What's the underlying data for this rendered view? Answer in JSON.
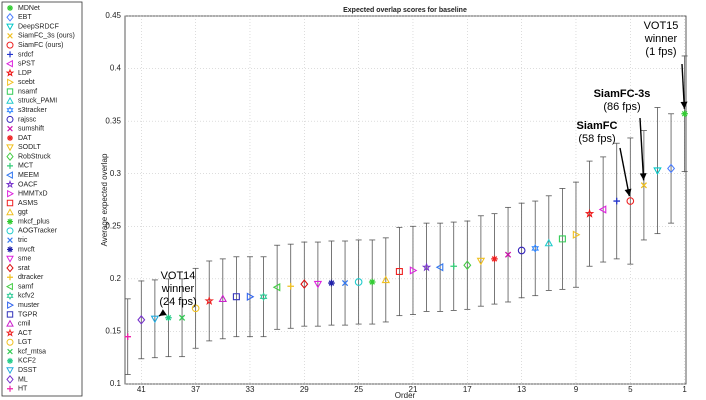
{
  "chart_data": {
    "type": "scatter",
    "title": "Expected overlap scores for baseline",
    "xlabel": "Order",
    "ylabel": "Average expected overlap",
    "xlim": [
      42.2,
      0.9
    ],
    "ylim": [
      0.1,
      0.45
    ],
    "xticks": [
      41,
      37,
      33,
      29,
      25,
      21,
      17,
      13,
      9,
      5,
      1
    ],
    "yticks": [
      0.1,
      0.15,
      0.2,
      0.25,
      0.3,
      0.35,
      0.4,
      0.45
    ],
    "grid": true,
    "legend": "outside-left",
    "series": [
      {
        "name": "MDNet",
        "color": "#33cc33",
        "marker": "asterisk",
        "x": [
          1
        ],
        "values": [
          0.357
        ],
        "yerr": [
          0.055
        ]
      },
      {
        "name": "EBT",
        "color": "#4d7fff",
        "marker": "diamond",
        "x": [
          2
        ],
        "values": [
          0.305
        ],
        "yerr": [
          0.052
        ]
      },
      {
        "name": "DeepSRDCF",
        "color": "#00c8c8",
        "marker": "tri-down",
        "x": [
          3
        ],
        "values": [
          0.303
        ],
        "yerr": [
          0.06
        ]
      },
      {
        "name": "SiamFC_3s (ours)",
        "color": "#f0c020",
        "marker": "x",
        "x": [
          4
        ],
        "values": [
          0.289
        ],
        "yerr": [
          0.052
        ]
      },
      {
        "name": "SiamFC (ours)",
        "color": "#ee2222",
        "marker": "circle",
        "x": [
          5
        ],
        "values": [
          0.274
        ],
        "yerr": [
          0.06
        ]
      },
      {
        "name": "srdcf",
        "color": "#2233cc",
        "marker": "plus",
        "x": [
          6
        ],
        "values": [
          0.274
        ],
        "yerr": [
          0.055
        ]
      },
      {
        "name": "sPST",
        "color": "#dd22dd",
        "marker": "tri-left",
        "x": [
          7
        ],
        "values": [
          0.266
        ],
        "yerr": [
          0.05
        ]
      },
      {
        "name": "LDP",
        "color": "#ee1111",
        "marker": "pentagram",
        "x": [
          8
        ],
        "values": [
          0.262
        ],
        "yerr": [
          0.05
        ]
      },
      {
        "name": "scebt",
        "color": "#f0c020",
        "marker": "tri-right",
        "x": [
          9
        ],
        "values": [
          0.242
        ],
        "yerr": [
          0.05
        ]
      },
      {
        "name": "nsamf",
        "color": "#33cc55",
        "marker": "square",
        "x": [
          10
        ],
        "values": [
          0.238
        ],
        "yerr": [
          0.048
        ]
      },
      {
        "name": "struck_PAMI",
        "color": "#22cccc",
        "marker": "tri-up",
        "x": [
          11
        ],
        "values": [
          0.234
        ],
        "yerr": [
          0.045
        ]
      },
      {
        "name": "s3tracker",
        "color": "#3388ff",
        "marker": "hexagram",
        "x": [
          12
        ],
        "values": [
          0.229
        ],
        "yerr": [
          0.045
        ]
      },
      {
        "name": "rajssc",
        "color": "#3322bb",
        "marker": "circle",
        "x": [
          13
        ],
        "values": [
          0.227
        ],
        "yerr": [
          0.045
        ]
      },
      {
        "name": "sumshift",
        "color": "#cc11aa",
        "marker": "x",
        "x": [
          14
        ],
        "values": [
          0.223
        ],
        "yerr": [
          0.045
        ]
      },
      {
        "name": "DAT",
        "color": "#ee2222",
        "marker": "asterisk",
        "x": [
          15
        ],
        "values": [
          0.219
        ],
        "yerr": [
          0.043
        ]
      },
      {
        "name": "SODLT",
        "color": "#f0c020",
        "marker": "tri-down",
        "x": [
          16
        ],
        "values": [
          0.217
        ],
        "yerr": [
          0.043
        ]
      },
      {
        "name": "RobStruck",
        "color": "#44cc44",
        "marker": "diamond",
        "x": [
          17
        ],
        "values": [
          0.213
        ],
        "yerr": [
          0.042
        ]
      },
      {
        "name": "MCT",
        "color": "#33cc77",
        "marker": "plus",
        "x": [
          18
        ],
        "values": [
          0.212
        ],
        "yerr": [
          0.042
        ]
      },
      {
        "name": "MEEM",
        "color": "#3377ee",
        "marker": "tri-left",
        "x": [
          19
        ],
        "values": [
          0.211
        ],
        "yerr": [
          0.042
        ]
      },
      {
        "name": "OACF",
        "color": "#7733cc",
        "marker": "pentagram",
        "x": [
          20
        ],
        "values": [
          0.211
        ],
        "yerr": [
          0.042
        ]
      },
      {
        "name": "HMMTxD",
        "color": "#dd22dd",
        "marker": "tri-right",
        "x": [
          21
        ],
        "values": [
          0.208
        ],
        "yerr": [
          0.042
        ]
      },
      {
        "name": "ASMS",
        "color": "#ee2222",
        "marker": "square",
        "x": [
          22
        ],
        "values": [
          0.207
        ],
        "yerr": [
          0.042
        ]
      },
      {
        "name": "ggt",
        "color": "#f0c020",
        "marker": "tri-up",
        "x": [
          23
        ],
        "values": [
          0.199
        ],
        "yerr": [
          0.04
        ]
      },
      {
        "name": "mkcf_plus",
        "color": "#33cc33",
        "marker": "asterisk",
        "x": [
          24
        ],
        "values": [
          0.197
        ],
        "yerr": [
          0.04
        ]
      },
      {
        "name": "AOGTracker",
        "color": "#22cccc",
        "marker": "circle",
        "x": [
          25
        ],
        "values": [
          0.197
        ],
        "yerr": [
          0.04
        ]
      },
      {
        "name": "tric",
        "color": "#3377ee",
        "marker": "x",
        "x": [
          26
        ],
        "values": [
          0.196
        ],
        "yerr": [
          0.04
        ]
      },
      {
        "name": "mvcft",
        "color": "#2222aa",
        "marker": "asterisk",
        "x": [
          27
        ],
        "values": [
          0.196
        ],
        "yerr": [
          0.04
        ]
      },
      {
        "name": "sme",
        "color": "#dd22dd",
        "marker": "tri-down",
        "x": [
          28
        ],
        "values": [
          0.195
        ],
        "yerr": [
          0.04
        ]
      },
      {
        "name": "srat",
        "color": "#dd1111",
        "marker": "diamond",
        "x": [
          29
        ],
        "values": [
          0.195
        ],
        "yerr": [
          0.04
        ]
      },
      {
        "name": "dtracker",
        "color": "#f0c020",
        "marker": "plus",
        "x": [
          30
        ],
        "values": [
          0.193
        ],
        "yerr": [
          0.04
        ]
      },
      {
        "name": "samf",
        "color": "#44cc44",
        "marker": "tri-left",
        "x": [
          31
        ],
        "values": [
          0.192
        ],
        "yerr": [
          0.04
        ]
      },
      {
        "name": "kcfv2",
        "color": "#33cc99",
        "marker": "hexagram",
        "x": [
          32
        ],
        "values": [
          0.183
        ],
        "yerr": [
          0.038
        ]
      },
      {
        "name": "muster",
        "color": "#3366ee",
        "marker": "tri-right",
        "x": [
          33
        ],
        "values": [
          0.183
        ],
        "yerr": [
          0.038
        ]
      },
      {
        "name": "TGPR",
        "color": "#3333bb",
        "marker": "square",
        "x": [
          34
        ],
        "values": [
          0.183
        ],
        "yerr": [
          0.038
        ]
      },
      {
        "name": "cmil",
        "color": "#cc22cc",
        "marker": "tri-up",
        "x": [
          35
        ],
        "values": [
          0.181
        ],
        "yerr": [
          0.038
        ]
      },
      {
        "name": "ACT",
        "color": "#ee2222",
        "marker": "pentagram",
        "x": [
          36
        ],
        "values": [
          0.179
        ],
        "yerr": [
          0.038
        ]
      },
      {
        "name": "LGT",
        "color": "#f0c020",
        "marker": "circle",
        "x": [
          37
        ],
        "values": [
          0.172
        ],
        "yerr": [
          0.038
        ]
      },
      {
        "name": "kcf_mtsa",
        "color": "#33cc55",
        "marker": "x",
        "x": [
          38
        ],
        "values": [
          0.163
        ],
        "yerr": [
          0.037
        ]
      },
      {
        "name": "KCF2",
        "color": "#22cc88",
        "marker": "asterisk",
        "x": [
          39
        ],
        "values": [
          0.163
        ],
        "yerr": [
          0.037
        ]
      },
      {
        "name": "DSST",
        "color": "#22aadd",
        "marker": "tri-down",
        "x": [
          40
        ],
        "values": [
          0.162
        ],
        "yerr": [
          0.037
        ]
      },
      {
        "name": "ML",
        "color": "#7733cc",
        "marker": "diamond",
        "x": [
          41
        ],
        "values": [
          0.161
        ],
        "yerr": [
          0.037
        ]
      },
      {
        "name": "HT",
        "color": "#ee22aa",
        "marker": "plus",
        "x": [
          42
        ],
        "values": [
          0.145
        ],
        "yerr": [
          0.036
        ]
      }
    ],
    "annotations": [
      {
        "lines": [
          "VOT14",
          "winner",
          "(24 fps)"
        ]
      },
      {
        "lines": [
          "SiamFC",
          "(58 fps)"
        ]
      },
      {
        "lines": [
          "SiamFC-3s",
          "(86 fps)"
        ]
      },
      {
        "lines": [
          "VOT15",
          "winner",
          "(1 fps)"
        ]
      }
    ]
  }
}
